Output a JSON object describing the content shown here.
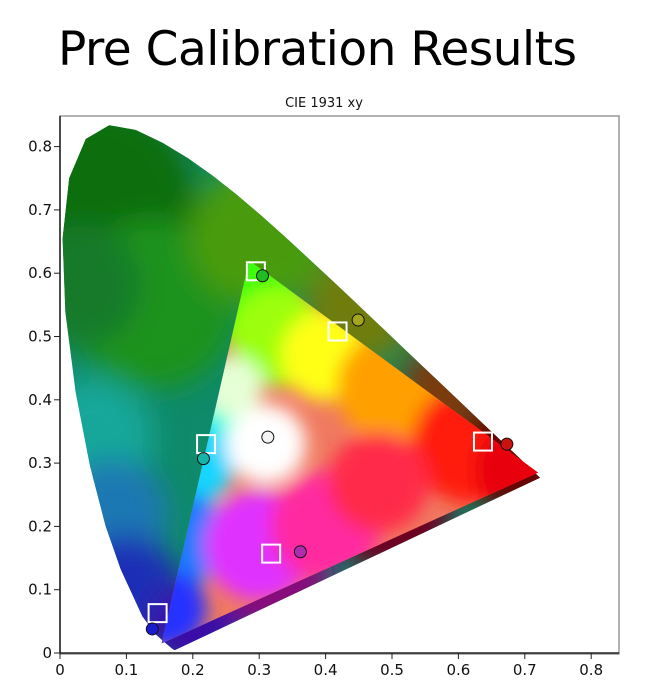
{
  "page": {
    "title": "Pre Calibration Results"
  },
  "chart_data": {
    "type": "scatter",
    "title": "CIE 1931 xy",
    "xlim": [
      0,
      0.84
    ],
    "ylim": [
      0,
      0.84
    ],
    "x_ticks": [
      0,
      0.1,
      0.2,
      0.3,
      0.4,
      0.5,
      0.6,
      0.7,
      0.8
    ],
    "y_ticks": [
      0,
      0.1,
      0.2,
      0.3,
      0.4,
      0.5,
      0.6,
      0.7,
      0.8
    ],
    "x_tick_labels": [
      "0",
      "0.1",
      "0.2",
      "0.3",
      "0.4",
      "0.5",
      "0.6",
      "0.7",
      "0.8"
    ],
    "y_tick_labels": [
      "0",
      "0.1",
      "0.2",
      "0.3",
      "0.4",
      "0.5",
      "0.6",
      "0.7",
      "0.8"
    ],
    "grid": false,
    "background": "CIE 1931 chromaticity diagram",
    "reference_gamut": {
      "red": [
        0.72,
        0.285
      ],
      "green": [
        0.285,
        0.62
      ],
      "blue": [
        0.153,
        0.015
      ]
    },
    "series": [
      {
        "marker": "square",
        "points": [
          {
            "x": 0.295,
            "y": 0.603
          },
          {
            "x": 0.418,
            "y": 0.508
          },
          {
            "x": 0.637,
            "y": 0.334
          },
          {
            "x": 0.22,
            "y": 0.33
          },
          {
            "x": 0.308,
            "y": 0.331
          },
          {
            "x": 0.318,
            "y": 0.157
          },
          {
            "x": 0.147,
            "y": 0.063
          }
        ]
      },
      {
        "marker": "circle",
        "points": [
          {
            "x": 0.305,
            "y": 0.596,
            "color": "#22bb22"
          },
          {
            "x": 0.449,
            "y": 0.526,
            "color": "#a6a61e"
          },
          {
            "x": 0.673,
            "y": 0.33,
            "color": "#cc1111"
          },
          {
            "x": 0.216,
            "y": 0.307,
            "color": "#18b4a8"
          },
          {
            "x": 0.313,
            "y": 0.341,
            "color": "#f4f4f4"
          },
          {
            "x": 0.362,
            "y": 0.16,
            "color": "#b02cb0"
          },
          {
            "x": 0.139,
            "y": 0.038,
            "color": "#1a1ad0"
          }
        ]
      }
    ]
  }
}
